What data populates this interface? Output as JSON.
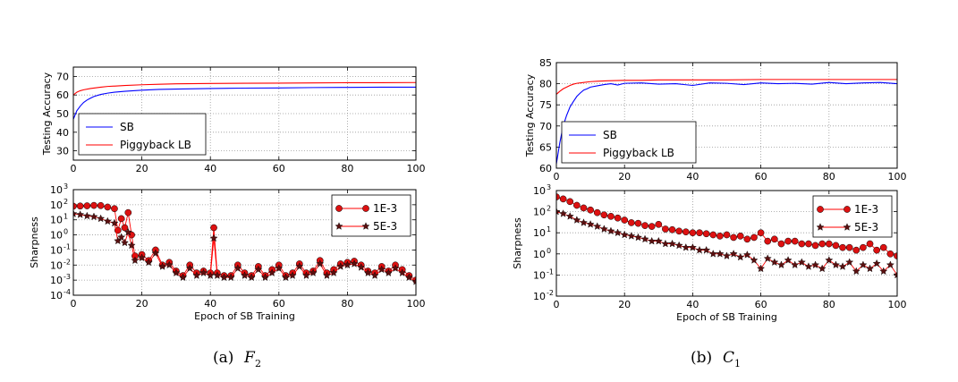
{
  "captions": [
    {
      "label": "(a)",
      "sym": "F",
      "sub": "2"
    },
    {
      "label": "(b)",
      "sym": "C",
      "sub": "1"
    }
  ],
  "colors": {
    "sb": "#0000ff",
    "lb": "#ff0000",
    "marker_red": "#dd1111",
    "marker_dark": "#5a1010",
    "grid": "#999999"
  },
  "chart_data": [
    {
      "id": "a-acc",
      "type": "line",
      "ylabel": "Testing Accuracy",
      "xlabel": "",
      "xlim": [
        0,
        100
      ],
      "ylim": [
        25,
        75
      ],
      "xticks": [
        "0",
        "20",
        "40",
        "60",
        "80",
        "100"
      ],
      "yticks": [
        "30",
        "40",
        "50",
        "60",
        "70"
      ],
      "legend": "bottom-left",
      "series": [
        {
          "name": "SB",
          "color": "#0000ff",
          "x": [
            0,
            1,
            2,
            3,
            4,
            5,
            6,
            8,
            10,
            12,
            15,
            20,
            25,
            30,
            40,
            50,
            60,
            70,
            80,
            90,
            100
          ],
          "y": [
            47,
            51.5,
            54,
            56,
            57.3,
            58.3,
            59.2,
            60.3,
            61,
            61.5,
            62,
            62.6,
            63,
            63.2,
            63.5,
            63.7,
            63.8,
            64,
            64.1,
            64.2,
            64.2
          ]
        },
        {
          "name": "Piggyback LB",
          "color": "#ff0000",
          "x": [
            0,
            1,
            2,
            3,
            5,
            8,
            10,
            15,
            20,
            25,
            30,
            40,
            50,
            60,
            70,
            80,
            90,
            100
          ],
          "y": [
            60,
            61.5,
            62.3,
            62.8,
            63.5,
            64.2,
            64.6,
            65.1,
            65.5,
            65.8,
            66,
            66.2,
            66.3,
            66.4,
            66.5,
            66.6,
            66.6,
            66.7
          ]
        }
      ]
    },
    {
      "id": "a-sharp",
      "type": "scatter-line",
      "ylabel": "Sharpness",
      "xlabel": "Epoch of SB Training",
      "xlim": [
        0,
        100
      ],
      "ylim_log10": [
        -4,
        3
      ],
      "xticks": [
        "0",
        "20",
        "40",
        "60",
        "80",
        "100"
      ],
      "yticks": [
        {
          "base": "10",
          "exp": "3"
        },
        {
          "base": "10",
          "exp": "2"
        },
        {
          "base": "10",
          "exp": "1"
        },
        {
          "base": "10",
          "exp": "0"
        },
        {
          "base": "10",
          "exp": "-1"
        },
        {
          "base": "10",
          "exp": "-2"
        },
        {
          "base": "10",
          "exp": "-3"
        },
        {
          "base": "10",
          "exp": "-4"
        }
      ],
      "legend": "top-right",
      "series": [
        {
          "name": "1E-3",
          "marker": "circle",
          "color": "#dd1111",
          "x": [
            0,
            2,
            4,
            6,
            8,
            10,
            12,
            13,
            14,
            15,
            16,
            17,
            18,
            20,
            22,
            24,
            26,
            28,
            30,
            32,
            34,
            36,
            38,
            40,
            41,
            42,
            44,
            46,
            48,
            50,
            52,
            54,
            56,
            58,
            60,
            62,
            64,
            66,
            68,
            70,
            72,
            74,
            76,
            78,
            80,
            82,
            84,
            86,
            88,
            90,
            92,
            94,
            96,
            98,
            100
          ],
          "y": [
            80,
            82,
            85,
            90,
            88,
            70,
            55,
            2,
            12,
            3,
            30,
            1,
            0.04,
            0.05,
            0.02,
            0.1,
            0.01,
            0.015,
            0.004,
            0.002,
            0.01,
            0.003,
            0.004,
            0.003,
            3,
            0.003,
            0.002,
            0.002,
            0.01,
            0.003,
            0.002,
            0.008,
            0.002,
            0.005,
            0.01,
            0.002,
            0.003,
            0.012,
            0.003,
            0.004,
            0.02,
            0.003,
            0.005,
            0.012,
            0.015,
            0.018,
            0.01,
            0.004,
            0.003,
            0.008,
            0.004,
            0.01,
            0.005,
            0.002,
            0.001
          ]
        },
        {
          "name": "5E-3",
          "marker": "star",
          "color": "#5a1010",
          "x": [
            0,
            2,
            4,
            6,
            8,
            10,
            12,
            13,
            14,
            15,
            16,
            17,
            18,
            20,
            22,
            24,
            26,
            28,
            30,
            32,
            34,
            36,
            38,
            40,
            41,
            42,
            44,
            46,
            48,
            50,
            52,
            54,
            56,
            58,
            60,
            62,
            64,
            66,
            68,
            70,
            72,
            74,
            76,
            78,
            80,
            82,
            84,
            86,
            88,
            90,
            92,
            94,
            96,
            98,
            100
          ],
          "y": [
            25,
            22,
            18,
            16,
            12,
            8,
            6,
            0.4,
            0.7,
            0.3,
            1.5,
            0.2,
            0.02,
            0.03,
            0.015,
            0.06,
            0.008,
            0.01,
            0.003,
            0.0015,
            0.006,
            0.002,
            0.003,
            0.002,
            0.6,
            0.002,
            0.0015,
            0.0015,
            0.006,
            0.002,
            0.0015,
            0.005,
            0.0015,
            0.003,
            0.006,
            0.0015,
            0.002,
            0.008,
            0.002,
            0.003,
            0.012,
            0.002,
            0.003,
            0.008,
            0.01,
            0.012,
            0.007,
            0.003,
            0.002,
            0.005,
            0.003,
            0.006,
            0.003,
            0.0015,
            0.0008
          ]
        }
      ]
    },
    {
      "id": "b-acc",
      "type": "line",
      "ylabel": "Testing Accuracy",
      "xlabel": "",
      "xlim": [
        0,
        100
      ],
      "ylim": [
        60,
        85
      ],
      "xticks": [
        "0",
        "20",
        "40",
        "60",
        "80",
        "100"
      ],
      "yticks": [
        "60",
        "65",
        "70",
        "75",
        "80",
        "85"
      ],
      "legend": "bottom-left",
      "series": [
        {
          "name": "SB",
          "color": "#0000ff",
          "x": [
            0,
            1,
            2,
            3,
            4,
            5,
            6,
            7,
            8,
            9,
            10,
            12,
            14,
            16,
            18,
            20,
            25,
            30,
            35,
            40,
            45,
            50,
            55,
            60,
            65,
            70,
            75,
            80,
            85,
            90,
            95,
            100
          ],
          "y": [
            61,
            66,
            70,
            72.5,
            74.5,
            75.8,
            77,
            77.8,
            78.5,
            78.8,
            79.2,
            79.5,
            79.8,
            80,
            79.7,
            80.1,
            80.2,
            79.9,
            80,
            79.6,
            80.2,
            80.1,
            79.8,
            80.2,
            80,
            80.1,
            79.9,
            80.3,
            80,
            80.2,
            80.3,
            80
          ]
        },
        {
          "name": "Piggyback LB",
          "color": "#ff0000",
          "x": [
            0,
            1,
            2,
            3,
            4,
            5,
            6,
            8,
            10,
            12,
            15,
            20,
            25,
            30,
            40,
            50,
            60,
            70,
            80,
            90,
            100
          ],
          "y": [
            77.5,
            78.2,
            78.8,
            79.2,
            79.6,
            79.9,
            80.1,
            80.3,
            80.5,
            80.6,
            80.7,
            80.8,
            80.8,
            80.9,
            80.9,
            80.9,
            81,
            81,
            81,
            81,
            81
          ]
        }
      ]
    },
    {
      "id": "b-sharp",
      "type": "scatter-line",
      "ylabel": "Sharpness",
      "xlabel": "Epoch of SB Training",
      "xlim": [
        0,
        100
      ],
      "ylim_log10": [
        -2,
        3
      ],
      "xticks": [
        "0",
        "20",
        "40",
        "60",
        "80",
        "100"
      ],
      "yticks": [
        {
          "base": "10",
          "exp": "3"
        },
        {
          "base": "10",
          "exp": "2"
        },
        {
          "base": "10",
          "exp": "1"
        },
        {
          "base": "10",
          "exp": "0"
        },
        {
          "base": "10",
          "exp": "-1"
        },
        {
          "base": "10",
          "exp": "-2"
        }
      ],
      "legend": "top-right",
      "series": [
        {
          "name": "1E-3",
          "marker": "circle",
          "color": "#dd1111",
          "x": [
            0,
            2,
            4,
            6,
            8,
            10,
            12,
            14,
            16,
            18,
            20,
            22,
            24,
            26,
            28,
            30,
            32,
            34,
            36,
            38,
            40,
            42,
            44,
            46,
            48,
            50,
            52,
            54,
            56,
            58,
            60,
            62,
            64,
            66,
            68,
            70,
            72,
            74,
            76,
            78,
            80,
            82,
            84,
            86,
            88,
            90,
            92,
            94,
            96,
            98,
            100
          ],
          "y": [
            500,
            400,
            300,
            200,
            150,
            120,
            90,
            70,
            60,
            50,
            40,
            30,
            28,
            22,
            20,
            25,
            15,
            14,
            12,
            11,
            10,
            10,
            9,
            8,
            7,
            8,
            6,
            7,
            5,
            6,
            10,
            4,
            5,
            3,
            4,
            4,
            3,
            3,
            2.5,
            3,
            3,
            2.5,
            2,
            2,
            1.5,
            2,
            3,
            1.5,
            2,
            1,
            0.8
          ]
        },
        {
          "name": "5E-3",
          "marker": "star",
          "color": "#5a1010",
          "x": [
            0,
            2,
            4,
            6,
            8,
            10,
            12,
            14,
            16,
            18,
            20,
            22,
            24,
            26,
            28,
            30,
            32,
            34,
            36,
            38,
            40,
            42,
            44,
            46,
            48,
            50,
            52,
            54,
            56,
            58,
            60,
            62,
            64,
            66,
            68,
            70,
            72,
            74,
            76,
            78,
            80,
            82,
            84,
            86,
            88,
            90,
            92,
            94,
            96,
            98,
            100
          ],
          "y": [
            100,
            80,
            60,
            40,
            30,
            25,
            20,
            15,
            12,
            10,
            8,
            7,
            6,
            5,
            4,
            4,
            3,
            3,
            2.5,
            2,
            2,
            1.5,
            1.5,
            1,
            1,
            0.8,
            1,
            0.7,
            0.9,
            0.5,
            0.2,
            0.6,
            0.4,
            0.3,
            0.5,
            0.3,
            0.4,
            0.25,
            0.3,
            0.2,
            0.5,
            0.3,
            0.25,
            0.4,
            0.15,
            0.3,
            0.2,
            0.35,
            0.15,
            0.3,
            0.1
          ]
        }
      ]
    }
  ]
}
